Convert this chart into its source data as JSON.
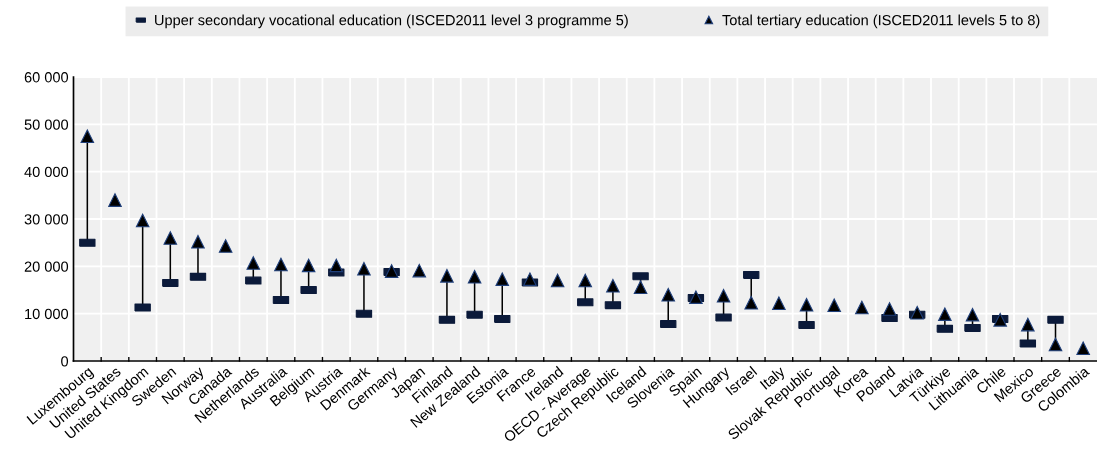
{
  "chart_data": {
    "type": "scatter",
    "categories": [
      "Luxembourg",
      "United States",
      "United Kingdom",
      "Sweden",
      "Norway",
      "Canada",
      "Netherlands",
      "Australia",
      "Belgium",
      "Austria",
      "Denmark",
      "Germany",
      "Japan",
      "Finland",
      "New Zealand",
      "Estonia",
      "France",
      "Ireland",
      "OECD - Average",
      "Czech Republic",
      "Iceland",
      "Slovenia",
      "Spain",
      "Hungary",
      "Israel",
      "Italy",
      "Slovak Republic",
      "Portugal",
      "Korea",
      "Poland",
      "Latvia",
      "Türkiye",
      "Lithuania",
      "Chile",
      "Mexico",
      "Greece",
      "Colombia"
    ],
    "series": [
      {
        "name": "Upper secondary vocational education (ISCED2011 level 3 programme 5)",
        "color": "#0b1a3a",
        "marker": "square",
        "values": [
          25000,
          null,
          11300,
          16500,
          17800,
          null,
          17000,
          12900,
          15000,
          18700,
          10000,
          18800,
          null,
          8700,
          9800,
          8900,
          16600,
          null,
          12400,
          11800,
          17900,
          7800,
          13300,
          9200,
          18200,
          null,
          7600,
          null,
          null,
          9100,
          9800,
          6800,
          7000,
          8900,
          3700,
          8700,
          null
        ]
      },
      {
        "name": "Total tertiary education (ISCED2011 levels 5 to 8)",
        "color": "#000000",
        "marker": "triangle",
        "values": [
          47500,
          34000,
          29700,
          26000,
          25200,
          24300,
          20700,
          20400,
          20200,
          20200,
          19500,
          19000,
          19100,
          18000,
          17800,
          17300,
          17300,
          17000,
          17000,
          15900,
          15600,
          14000,
          13500,
          13800,
          12300,
          12200,
          11900,
          11800,
          11300,
          11000,
          10200,
          9900,
          9800,
          8700,
          7700,
          3500,
          2700
        ]
      }
    ],
    "ylim": [
      0,
      60000
    ],
    "yticks": [
      {
        "value": 0,
        "label": "0"
      },
      {
        "value": 10000,
        "label": "10 000"
      },
      {
        "value": 20000,
        "label": "20 000"
      },
      {
        "value": 30000,
        "label": "30 000"
      },
      {
        "value": 40000,
        "label": "40 000"
      },
      {
        "value": 50000,
        "label": "50 000"
      },
      {
        "value": 60000,
        "label": "60 000"
      }
    ],
    "grid": true,
    "legend": "top"
  }
}
